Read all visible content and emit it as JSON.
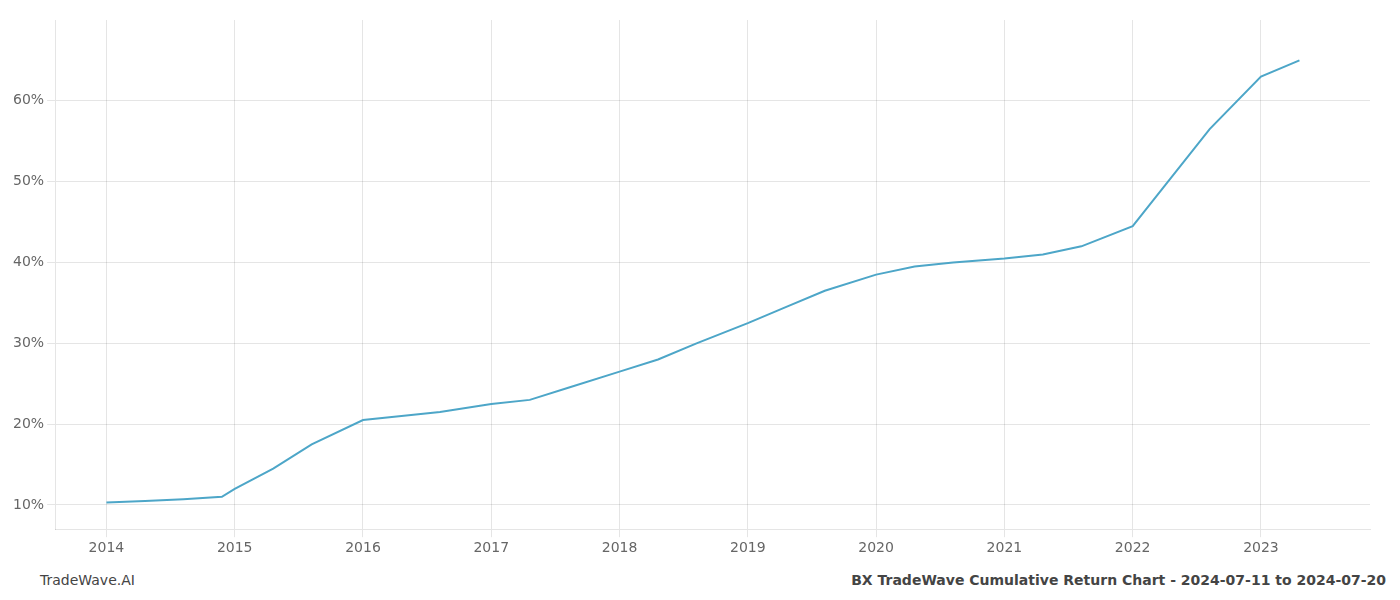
{
  "chart_data": {
    "type": "line",
    "x": [
      2014.0,
      2014.3,
      2014.6,
      2014.9,
      2015.0,
      2015.3,
      2015.6,
      2016.0,
      2016.3,
      2016.6,
      2017.0,
      2017.3,
      2017.6,
      2018.0,
      2018.3,
      2018.6,
      2019.0,
      2019.3,
      2019.6,
      2020.0,
      2020.3,
      2020.6,
      2021.0,
      2021.3,
      2021.6,
      2022.0,
      2022.3,
      2022.6,
      2023.0,
      2023.3
    ],
    "values": [
      10.3,
      10.5,
      10.7,
      11.0,
      12.0,
      14.5,
      17.5,
      20.5,
      21.0,
      21.5,
      22.5,
      23.0,
      24.5,
      26.5,
      28.0,
      30.0,
      32.5,
      34.5,
      36.5,
      38.5,
      39.5,
      40.0,
      40.5,
      41.0,
      42.0,
      44.5,
      50.5,
      56.5,
      63.0,
      65.0
    ],
    "color": "#4da6c8",
    "xlim": [
      2013.6,
      2023.85
    ],
    "xticks": [
      2014,
      2015,
      2016,
      2017,
      2018,
      2019,
      2020,
      2021,
      2022,
      2023
    ],
    "ylim": [
      7,
      70
    ],
    "yticks": [
      {
        "value": 10,
        "label": "10%"
      },
      {
        "value": 20,
        "label": "20%"
      },
      {
        "value": 30,
        "label": "30%"
      },
      {
        "value": 40,
        "label": "40%"
      },
      {
        "value": 50,
        "label": "50%"
      },
      {
        "value": 60,
        "label": "60%"
      }
    ],
    "grid": true,
    "annotations": [
      "TradeWave.AI",
      "BX TradeWave Cumulative Return Chart - 2024-07-11 to 2024-07-20"
    ]
  }
}
